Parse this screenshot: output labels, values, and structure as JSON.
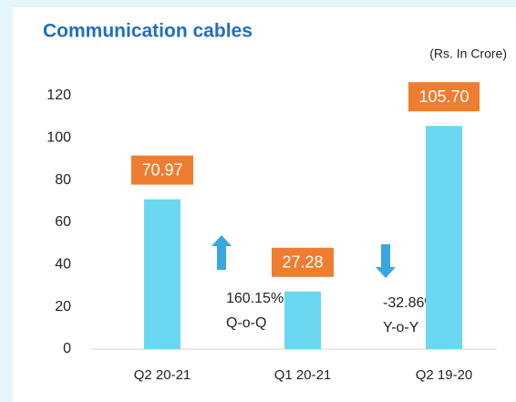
{
  "chart_data": {
    "type": "bar",
    "title": "Communication cables",
    "subtitle": "(Rs. In Crore)",
    "categories": [
      "Q2 20-21",
      "Q1 20-21",
      "Q2 19-20"
    ],
    "values": [
      70.97,
      27.28,
      105.7
    ],
    "value_labels": [
      "70.97",
      "27.28",
      "105.70"
    ],
    "color": "#6ad8f0",
    "label_color": "#ef7d2f",
    "ylim": [
      0,
      120
    ],
    "yticks": [
      0,
      20,
      40,
      60,
      80,
      100,
      120
    ],
    "grid": false,
    "annotations": [
      "160.15%",
      "Q-o-Q",
      "-32.86%",
      "Y-o-Y"
    ]
  }
}
